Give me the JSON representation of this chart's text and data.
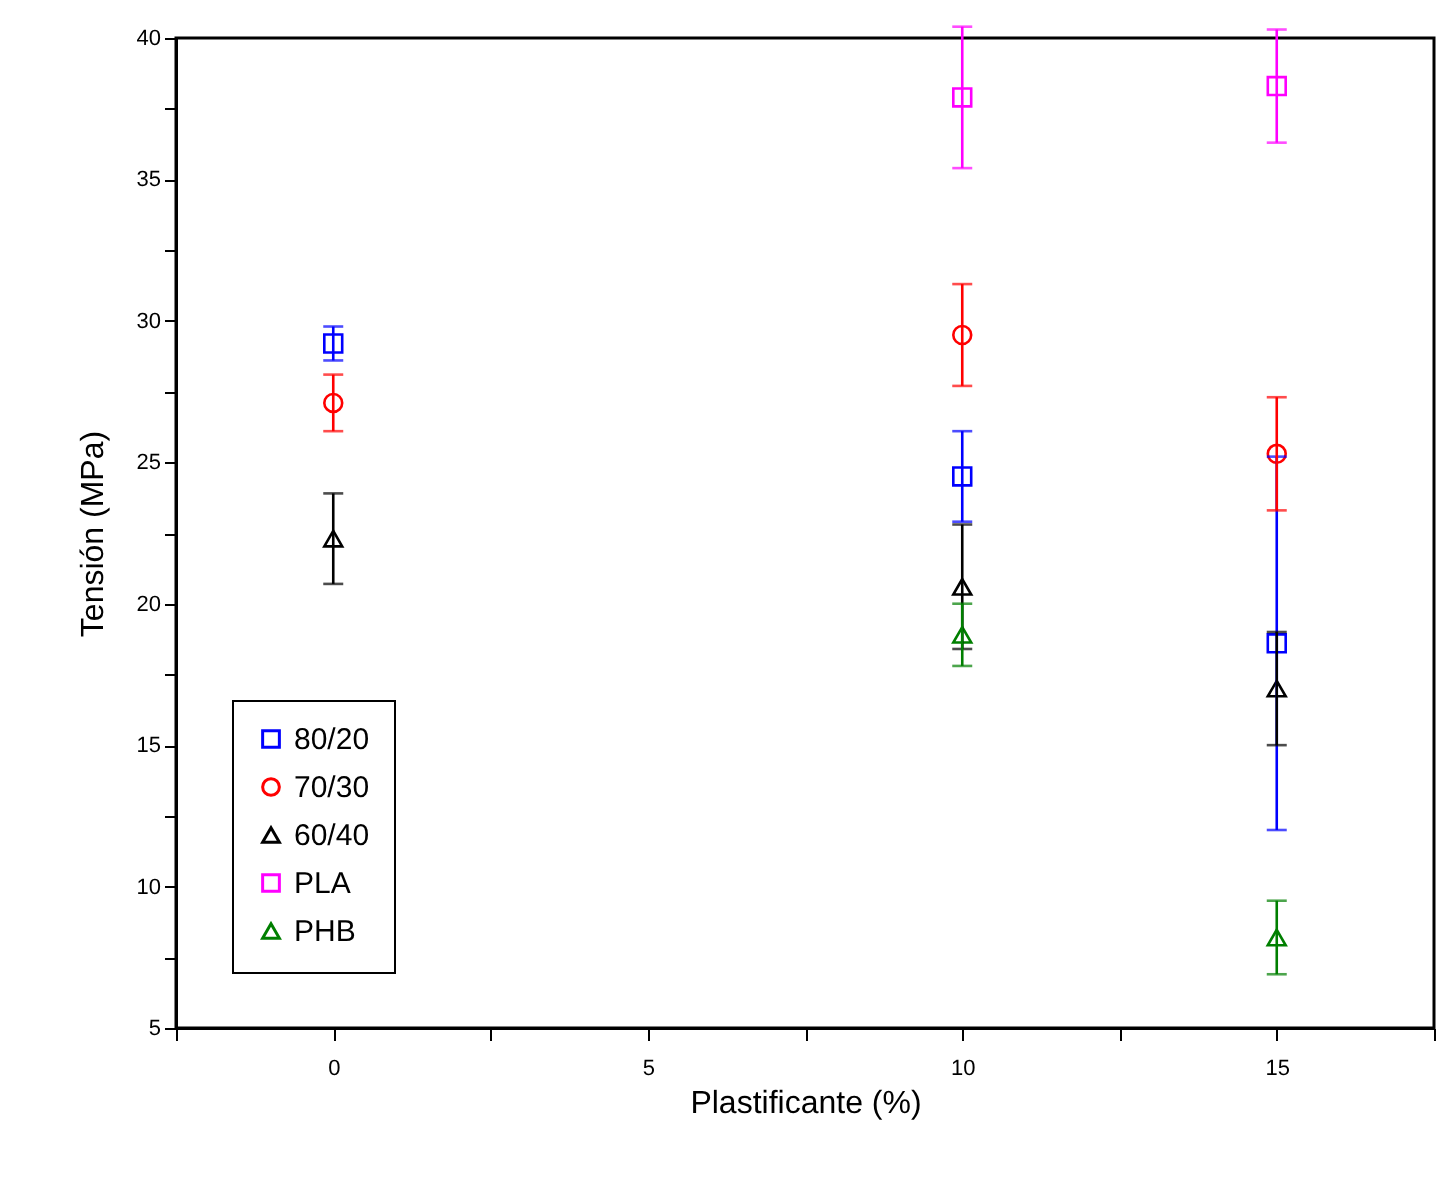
{
  "chart_data": {
    "type": "scatter",
    "xlabel": "Plastificante (%)",
    "ylabel": "Tensión (MPa)",
    "x": [
      0,
      10,
      15
    ],
    "series": [
      {
        "name": "80/20",
        "color": "#0000ff",
        "marker": "square",
        "values": [
          29.2,
          24.5,
          18.6
        ],
        "errors": [
          0.6,
          1.6,
          6.6
        ]
      },
      {
        "name": "70/30",
        "color": "#ff0000",
        "marker": "circle",
        "values": [
          27.1,
          29.5,
          25.3
        ],
        "errors": [
          1.0,
          1.8,
          2.0
        ]
      },
      {
        "name": "60/40",
        "color": "#000000",
        "marker": "triangle",
        "values": [
          22.3,
          20.6,
          17.0
        ],
        "errors": [
          1.6,
          2.2,
          2.0
        ]
      },
      {
        "name": "PLA",
        "color": "#ff00ff",
        "marker": "square",
        "values": [
          null,
          37.9,
          38.3
        ],
        "errors": [
          null,
          2.5,
          2.0
        ]
      },
      {
        "name": "PHB",
        "color": "#007f00",
        "marker": "triangle",
        "values": [
          null,
          18.9,
          8.2
        ],
        "errors": [
          null,
          1.1,
          1.3
        ]
      }
    ],
    "xlim": [
      -2.5,
      17.5
    ],
    "xticks": [
      {
        "value": -2.5,
        "label": null
      },
      0,
      {
        "value": 2.5,
        "label": null
      },
      5,
      {
        "value": 7.5,
        "label": null
      },
      10,
      {
        "value": 12.5,
        "label": null
      },
      15,
      {
        "value": 17.5,
        "label": null
      }
    ],
    "ylim": [
      5,
      40
    ],
    "yticks": [
      5,
      {
        "value": 7.5,
        "label": null
      },
      10,
      {
        "value": 12.5,
        "label": null
      },
      15,
      {
        "value": 17.5,
        "label": null
      },
      20,
      {
        "value": 22.5,
        "label": null
      },
      25,
      {
        "value": 27.5,
        "label": null
      },
      30,
      {
        "value": 32.5,
        "label": null
      },
      35,
      {
        "value": 37.5,
        "label": null
      },
      40
    ],
    "legend": "bottom left",
    "grid": false
  }
}
